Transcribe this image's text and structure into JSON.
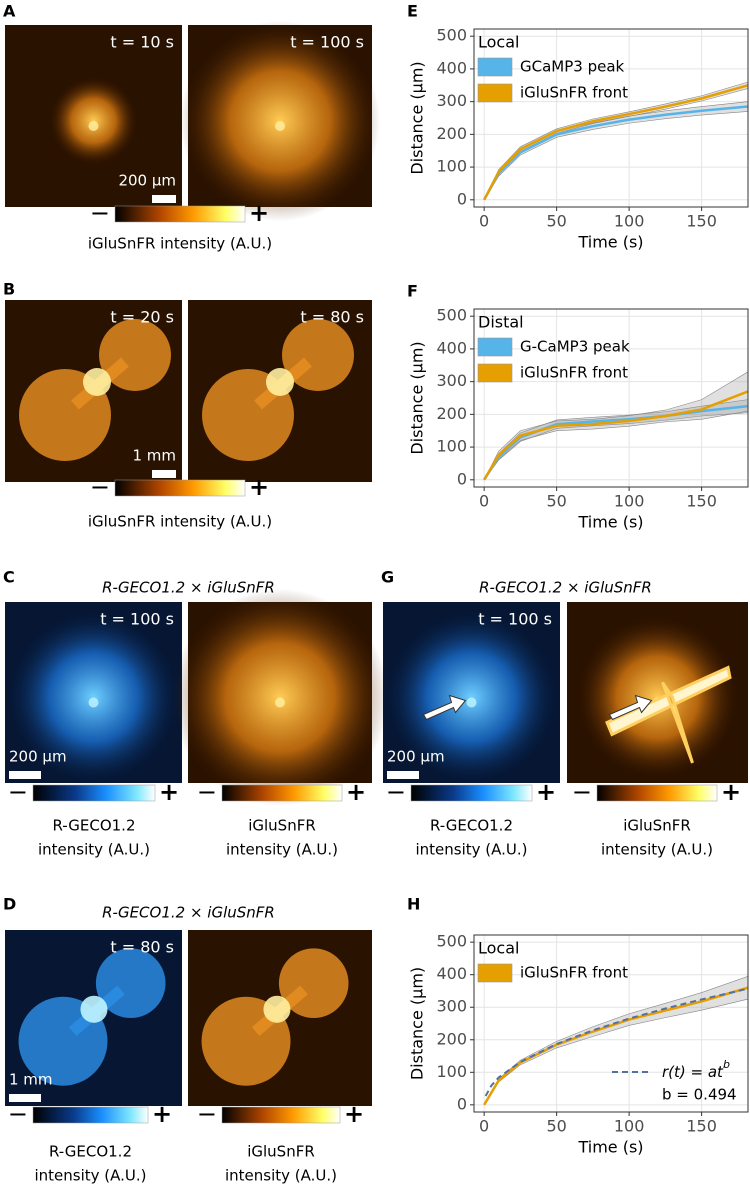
{
  "figure": {
    "panels": [
      {
        "label": "A",
        "images": [
          {
            "caption": "t = 10 s",
            "tone": "orange",
            "shape": "spot",
            "size": 0.25
          },
          {
            "caption": "t = 100 s",
            "tone": "orange",
            "shape": "spot",
            "size": 0.55
          }
        ],
        "scalebar": "200 µm",
        "colorbars": [
          {
            "tone": "orange",
            "min": "−",
            "max": "+",
            "label_lines": [
              "iGluSnFR intensity (A.U.)"
            ]
          }
        ]
      },
      {
        "label": "B",
        "images": [
          {
            "caption": "t = 20 s",
            "tone": "orange",
            "shape": "plant"
          },
          {
            "caption": "t = 80 s",
            "tone": "orange",
            "shape": "plant"
          }
        ],
        "scalebar": "1 mm",
        "colorbars": [
          {
            "tone": "orange",
            "min": "−",
            "max": "+",
            "label_lines": [
              "iGluSnFR intensity (A.U.)"
            ]
          }
        ]
      },
      {
        "label": "C",
        "header": "R-GECO1.2 × iGluSnFR",
        "images": [
          {
            "caption": "t = 100 s",
            "tone": "blue",
            "shape": "spot",
            "size": 0.5
          },
          {
            "tone": "orange",
            "shape": "spot",
            "size": 0.6
          }
        ],
        "scalebar": "200 µm",
        "colorbars": [
          {
            "tone": "blue",
            "min": "−",
            "max": "+",
            "label_lines": [
              "R-GECO1.2",
              "intensity (A.U.)"
            ]
          },
          {
            "tone": "orange",
            "min": "−",
            "max": "+",
            "label_lines": [
              "iGluSnFR",
              "intensity (A.U.)"
            ]
          }
        ]
      },
      {
        "label": "D",
        "header": "R-GECO1.2 × iGluSnFR",
        "images": [
          {
            "caption": "t = 80 s",
            "tone": "blue",
            "shape": "plant"
          },
          {
            "tone": "orange",
            "shape": "plant"
          }
        ],
        "scalebar": "1 mm",
        "colorbars": [
          {
            "tone": "blue",
            "min": "−",
            "max": "+",
            "label_lines": [
              "R-GECO1.2",
              "intensity (A.U.)"
            ]
          },
          {
            "tone": "orange",
            "min": "−",
            "max": "+",
            "label_lines": [
              "iGluSnFR",
              "intensity (A.U.)"
            ]
          }
        ]
      },
      {
        "label": "G",
        "header": "R-GECO1.2 × iGluSnFR",
        "images": [
          {
            "caption": "t = 100 s",
            "tone": "blue",
            "shape": "spot",
            "size": 0.5,
            "arrow": true
          },
          {
            "tone": "orange",
            "shape": "wound",
            "size": 0.45,
            "arrow": true
          }
        ],
        "scalebar": "200 µm",
        "colorbars": [
          {
            "tone": "blue",
            "min": "−",
            "max": "+",
            "label_lines": [
              "R-GECO1.2",
              "intensity (A.U.)"
            ]
          },
          {
            "tone": "orange",
            "min": "−",
            "max": "+",
            "label_lines": [
              "iGluSnFR",
              "intensity (A.U.)"
            ]
          }
        ]
      }
    ]
  },
  "chart_data": [
    {
      "type": "line",
      "panel_label": "E",
      "xlabel": "Time (s)",
      "ylabel": "Distance (µm)",
      "legend_title": "Local",
      "x": [
        0,
        10,
        25,
        50,
        75,
        100,
        125,
        150,
        182
      ],
      "xlim": [
        -7,
        182
      ],
      "ylim": [
        -22,
        522
      ],
      "xticks": [
        0,
        50,
        100,
        150
      ],
      "yticks": [
        0,
        100,
        200,
        300,
        400,
        500
      ],
      "grid": true,
      "series": [
        {
          "name": "GCaMP3 peak",
          "color": "#56b4e9",
          "values": [
            0,
            80,
            145,
            200,
            225,
            245,
            260,
            272,
            285
          ],
          "upper": [
            0,
            88,
            153,
            209,
            235,
            256,
            272,
            285,
            300
          ],
          "lower": [
            0,
            72,
            137,
            191,
            215,
            234,
            248,
            259,
            270
          ]
        },
        {
          "name": "iGluSnFR front",
          "color": "#e69f00",
          "values": [
            0,
            85,
            155,
            210,
            240,
            262,
            285,
            310,
            350
          ],
          "upper": [
            0,
            92,
            162,
            217,
            247,
            269,
            293,
            318,
            360
          ],
          "lower": [
            0,
            78,
            148,
            203,
            233,
            255,
            277,
            302,
            340
          ]
        }
      ]
    },
    {
      "type": "line",
      "panel_label": "F",
      "xlabel": "Time (s)",
      "ylabel": "Distance (µm)",
      "legend_title": "Distal",
      "x": [
        0,
        10,
        25,
        50,
        75,
        100,
        125,
        150,
        182
      ],
      "xlim": [
        -7,
        182
      ],
      "ylim": [
        -22,
        522
      ],
      "xticks": [
        0,
        50,
        100,
        150
      ],
      "yticks": [
        0,
        100,
        200,
        300,
        400,
        500
      ],
      "grid": true,
      "series": [
        {
          "name": "G-CaMP3 peak",
          "color": "#56b4e9",
          "values": [
            0,
            70,
            130,
            170,
            178,
            185,
            195,
            210,
            225
          ],
          "upper": [
            0,
            80,
            143,
            183,
            191,
            198,
            208,
            225,
            245
          ],
          "lower": [
            0,
            60,
            117,
            157,
            165,
            172,
            182,
            195,
            205
          ]
        },
        {
          "name": "iGluSnFR front",
          "color": "#e69f00",
          "values": [
            0,
            75,
            135,
            165,
            170,
            180,
            195,
            215,
            270
          ],
          "upper": [
            0,
            87,
            150,
            180,
            185,
            196,
            213,
            245,
            330
          ],
          "lower": [
            0,
            63,
            120,
            150,
            155,
            164,
            177,
            185,
            210
          ]
        }
      ]
    },
    {
      "type": "line",
      "panel_label": "H",
      "xlabel": "Time (s)",
      "ylabel": "Distance (µm)",
      "legend_title": "Local",
      "x": [
        0,
        10,
        25,
        50,
        75,
        100,
        125,
        150,
        182
      ],
      "xlim": [
        -7,
        182
      ],
      "ylim": [
        -22,
        522
      ],
      "xticks": [
        0,
        50,
        100,
        150
      ],
      "yticks": [
        0,
        100,
        200,
        300,
        400,
        500
      ],
      "grid": true,
      "series": [
        {
          "name": "iGluSnFR front",
          "color": "#e69f00",
          "values": [
            0,
            75,
            130,
            185,
            225,
            262,
            290,
            318,
            360
          ],
          "upper": [
            0,
            80,
            137,
            195,
            240,
            280,
            312,
            345,
            395
          ],
          "lower": [
            0,
            70,
            123,
            175,
            210,
            244,
            268,
            291,
            325
          ]
        }
      ],
      "fit": {
        "label_parts": [
          "r(t) = at",
          "b"
        ],
        "parameter": "b = 0.494",
        "color": "#5470a0",
        "x": [
          1,
          5,
          10,
          25,
          50,
          75,
          100,
          125,
          150,
          182
        ],
        "values": [
          27,
          59,
          84,
          132,
          187,
          229,
          265,
          296,
          324,
          357
        ]
      }
    }
  ]
}
